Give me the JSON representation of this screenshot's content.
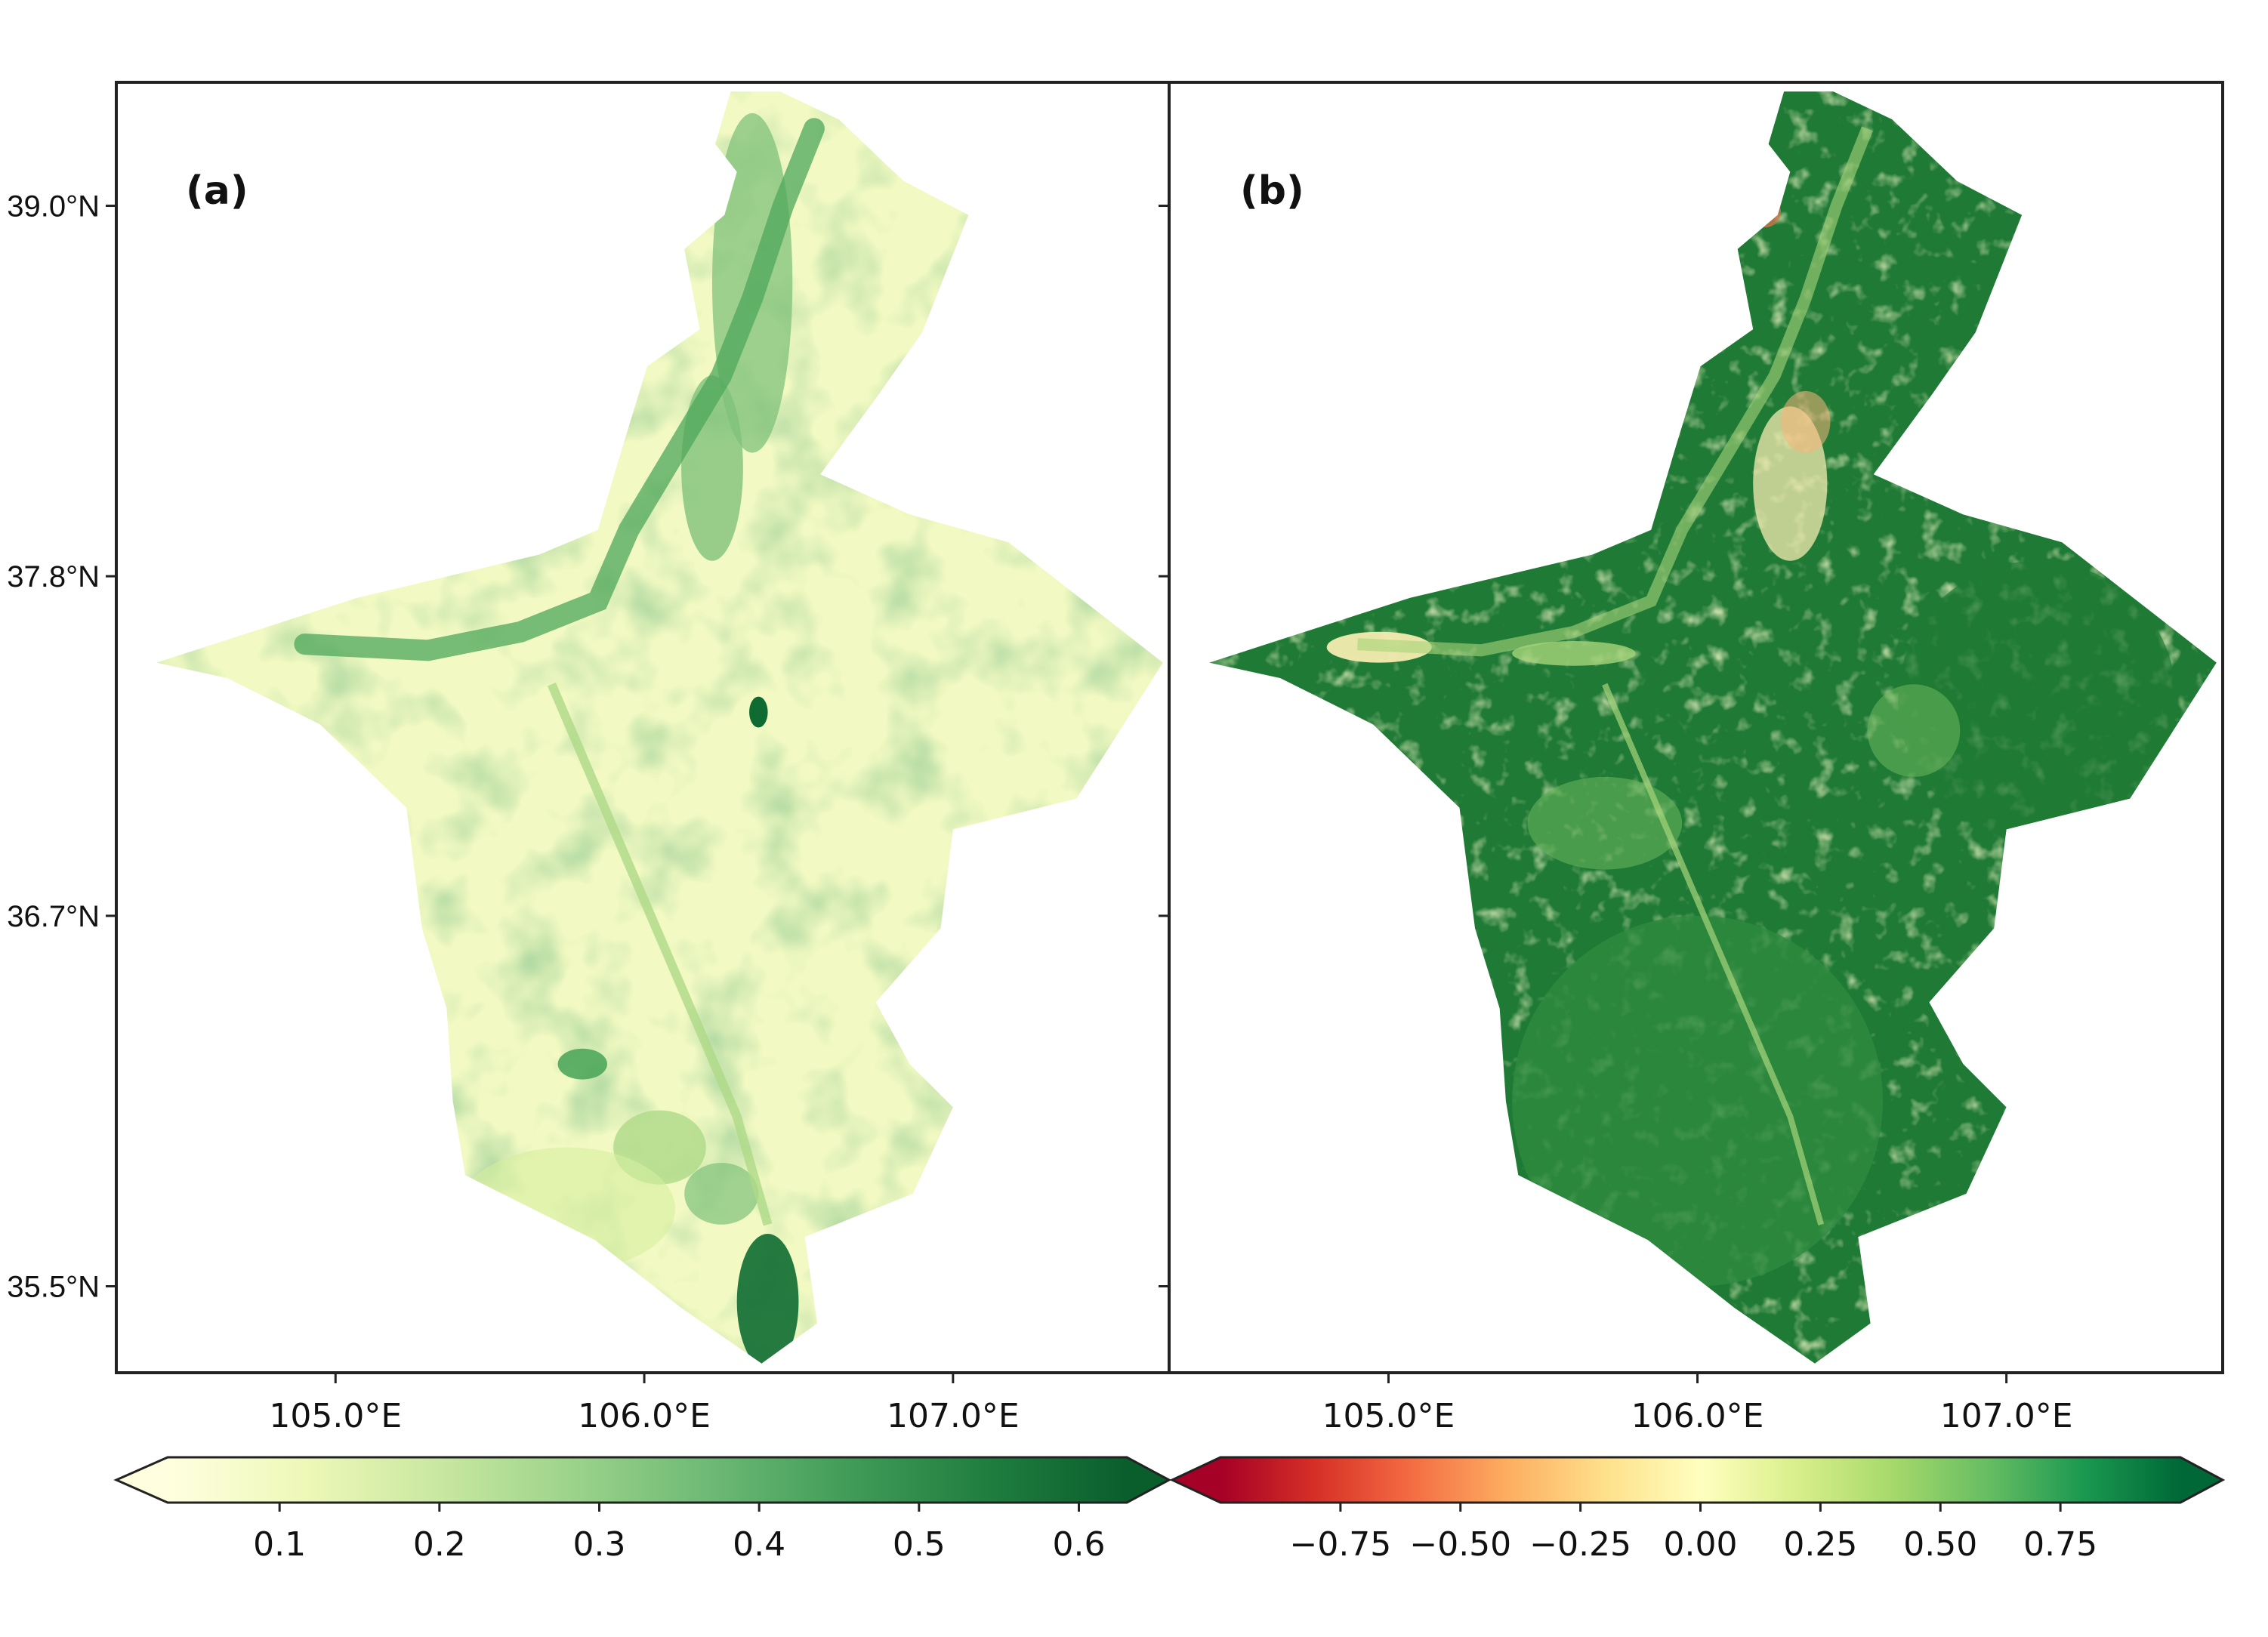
{
  "panels": [
    {
      "label": "(a)",
      "map_colormap": [
        "#ffffd9",
        "#f2f9c2",
        "#d6ef9f",
        "#aeda87",
        "#7fc27a",
        "#4ea75c",
        "#2c8b45",
        "#0e6b32",
        "#005a29"
      ],
      "colorbar": {
        "ticks": [
          "0.1",
          "0.2",
          "0.3",
          "0.4",
          "0.5",
          "0.6"
        ],
        "tick_values": [
          0.1,
          0.2,
          0.3,
          0.4,
          0.5,
          0.6
        ],
        "vmin": 0.03,
        "vmax": 0.63,
        "extend": "both",
        "colormap": [
          "#ffffe0",
          "#eef8b8",
          "#c8e7a0",
          "#9ad28a",
          "#6bb874",
          "#3f9b57",
          "#1f7d3f",
          "#0a5e2c"
        ]
      }
    },
    {
      "label": "(b)",
      "map_colormap": [
        "#2e8b3e",
        "#1f7a35",
        "#3d9a4a",
        "#66b35a",
        "#a6d47a",
        "#f4ecb0",
        "#f7b47a",
        "#e6744e"
      ],
      "colorbar": {
        "ticks": [
          "−0.75",
          "−0.50",
          "−0.25",
          "0.00",
          "0.25",
          "0.50",
          "0.75"
        ],
        "tick_values": [
          -0.75,
          -0.5,
          -0.25,
          0.0,
          0.25,
          0.5,
          0.75
        ],
        "vmin": -1.0,
        "vmax": 1.0,
        "extend": "both",
        "colormap": [
          "#a50026",
          "#d73027",
          "#f46d43",
          "#fdae61",
          "#fee08b",
          "#ffffbf",
          "#d9ef8b",
          "#a6d96a",
          "#66bd63",
          "#1a9850",
          "#006837"
        ]
      }
    }
  ],
  "x_ticks": [
    "105.0°E",
    "106.0°E",
    "107.0°E"
  ],
  "x_tick_values": [
    105.0,
    106.0,
    107.0
  ],
  "y_ticks": [
    "39.0°N",
    "37.8°N",
    "36.7°N",
    "35.5°N"
  ],
  "y_tick_values": [
    39.0,
    37.8,
    36.7,
    35.5
  ],
  "lon_range": [
    104.29,
    107.7
  ],
  "lat_range": [
    35.22,
    39.4
  ],
  "region_outline_lonlat": [
    [
      106.44,
      39.37
    ],
    [
      106.28,
      39.37
    ],
    [
      106.23,
      39.2
    ],
    [
      106.3,
      39.11
    ],
    [
      106.26,
      38.97
    ],
    [
      106.13,
      38.86
    ],
    [
      106.18,
      38.6
    ],
    [
      106.01,
      38.48
    ],
    [
      105.93,
      38.22
    ],
    [
      105.85,
      37.95
    ],
    [
      105.66,
      37.87
    ],
    [
      105.07,
      37.73
    ],
    [
      104.42,
      37.52
    ],
    [
      104.65,
      37.47
    ],
    [
      104.95,
      37.32
    ],
    [
      105.23,
      37.05
    ],
    [
      105.28,
      36.66
    ],
    [
      105.36,
      36.4
    ],
    [
      105.38,
      36.1
    ],
    [
      105.42,
      35.86
    ],
    [
      105.84,
      35.65
    ],
    [
      106.12,
      35.43
    ],
    [
      106.38,
      35.25
    ],
    [
      106.56,
      35.38
    ],
    [
      106.52,
      35.66
    ],
    [
      106.87,
      35.8
    ],
    [
      107.0,
      36.08
    ],
    [
      106.86,
      36.22
    ],
    [
      106.75,
      36.42
    ],
    [
      106.96,
      36.66
    ],
    [
      107.0,
      36.98
    ],
    [
      107.4,
      37.08
    ],
    [
      107.68,
      37.52
    ],
    [
      107.18,
      37.91
    ],
    [
      106.86,
      38.0
    ],
    [
      106.57,
      38.13
    ],
    [
      106.76,
      38.39
    ],
    [
      106.9,
      38.59
    ],
    [
      107.05,
      38.97
    ],
    [
      106.84,
      39.08
    ],
    [
      106.63,
      39.28
    ]
  ]
}
